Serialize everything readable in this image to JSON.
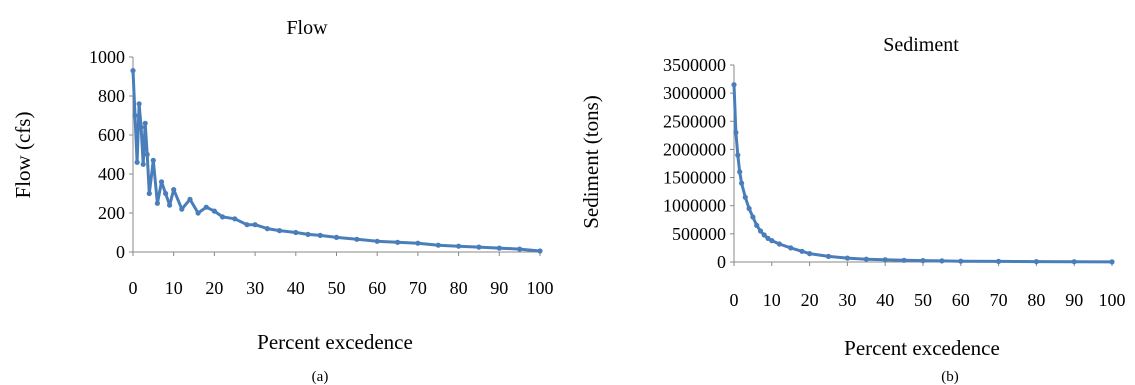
{
  "figure_labels": [
    "(a)",
    "(b)"
  ],
  "chart_data": [
    {
      "type": "line",
      "title": "Flow",
      "xlabel": "Percent excedence",
      "ylabel": "Flow (cfs)",
      "xlim": [
        0,
        100
      ],
      "ylim": [
        0,
        1000
      ],
      "xticks": [
        0,
        10,
        20,
        30,
        40,
        50,
        60,
        70,
        80,
        90,
        100
      ],
      "yticks": [
        0,
        200,
        400,
        600,
        800,
        1000
      ],
      "grid": false,
      "markers": true,
      "color": "#4a7ebb",
      "series": [
        {
          "x": [
            0,
            0.5,
            1,
            1.5,
            2,
            2.5,
            3,
            3.5,
            4,
            5,
            6,
            7,
            8,
            9,
            10,
            12,
            14,
            16,
            18,
            20,
            22,
            25,
            28,
            30,
            33,
            36,
            40,
            43,
            46,
            50,
            55,
            60,
            65,
            70,
            75,
            80,
            85,
            90,
            95,
            100
          ],
          "y": [
            930,
            700,
            460,
            760,
            640,
            450,
            660,
            500,
            300,
            470,
            250,
            360,
            300,
            240,
            320,
            220,
            270,
            200,
            230,
            210,
            180,
            170,
            140,
            140,
            120,
            110,
            100,
            90,
            85,
            75,
            65,
            55,
            50,
            45,
            35,
            30,
            25,
            20,
            15,
            5
          ]
        }
      ]
    },
    {
      "type": "line",
      "title": "Sediment",
      "xlabel": "Percent excedence",
      "ylabel": "Sediment (tons)",
      "xlim": [
        0,
        100
      ],
      "ylim": [
        0,
        3500000
      ],
      "xticks": [
        0,
        10,
        20,
        30,
        40,
        50,
        60,
        70,
        80,
        90,
        100
      ],
      "yticks": [
        0,
        500000,
        1000000,
        1500000,
        2000000,
        2500000,
        3000000,
        3500000
      ],
      "grid": false,
      "markers": true,
      "color": "#4a7ebb",
      "series": [
        {
          "x": [
            0,
            0.5,
            1,
            1.5,
            2,
            3,
            4,
            5,
            6,
            7,
            8,
            9,
            10,
            12,
            15,
            18,
            20,
            25,
            30,
            35,
            40,
            45,
            50,
            55,
            60,
            70,
            80,
            90,
            100
          ],
          "y": [
            3150000,
            2300000,
            1900000,
            1600000,
            1400000,
            1150000,
            950000,
            800000,
            650000,
            550000,
            480000,
            420000,
            380000,
            320000,
            250000,
            190000,
            150000,
            100000,
            70000,
            50000,
            40000,
            30000,
            25000,
            20000,
            15000,
            10000,
            7000,
            5000,
            1000
          ]
        }
      ]
    }
  ]
}
